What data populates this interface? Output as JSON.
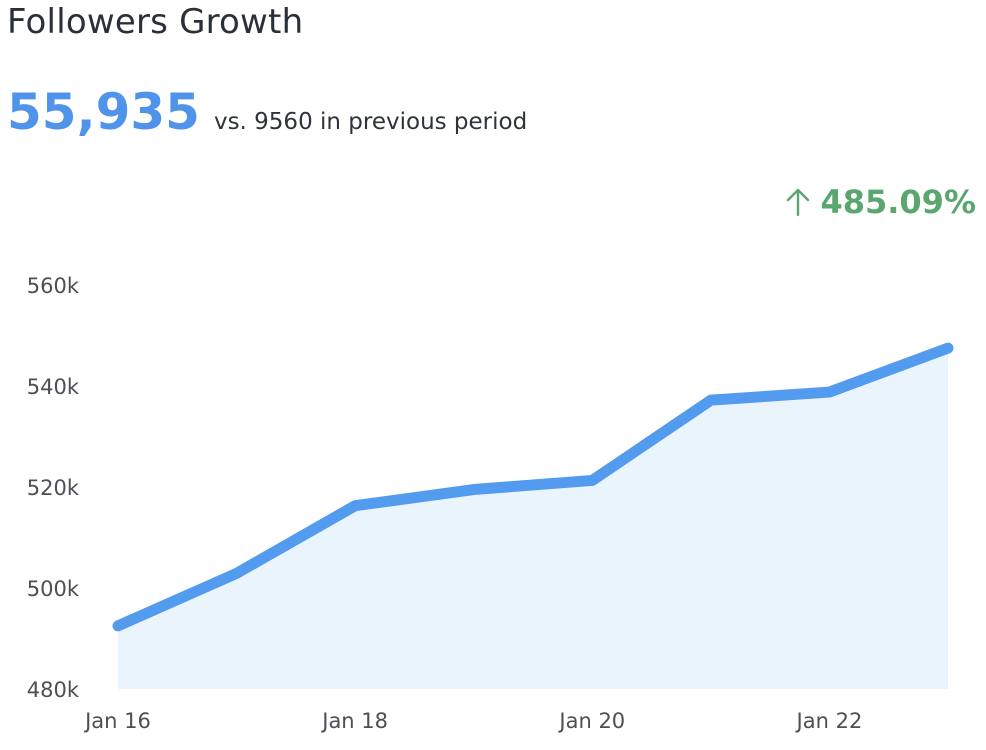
{
  "header": {
    "title": "Followers Growth",
    "metric_value": "55,935",
    "metric_compare": "vs. 9560 in previous period",
    "change_value": "485.09%",
    "change_icon": "arrow-up-icon"
  },
  "colors": {
    "line": "#529bef",
    "area": "#eaf4fd",
    "metric": "#4f94ea",
    "change": "#59a76e"
  },
  "chart_data": {
    "type": "area",
    "x": [
      "Jan 16",
      "Jan 17",
      "Jan 18",
      "Jan 19",
      "Jan 20",
      "Jan 21",
      "Jan 22",
      "Jan 23"
    ],
    "values": [
      492500,
      502900,
      516300,
      519500,
      521300,
      537200,
      538800,
      547500
    ],
    "xticks": [
      "Jan 16",
      "Jan 18",
      "Jan 20",
      "Jan 22"
    ],
    "yticks": [
      480000,
      500000,
      520000,
      540000,
      560000
    ],
    "ytick_labels": [
      "480k",
      "500k",
      "520k",
      "540k",
      "560k"
    ],
    "ylim": [
      480000,
      560000
    ],
    "title": "",
    "xlabel": "",
    "ylabel": "",
    "grid": false,
    "legend": "none"
  }
}
